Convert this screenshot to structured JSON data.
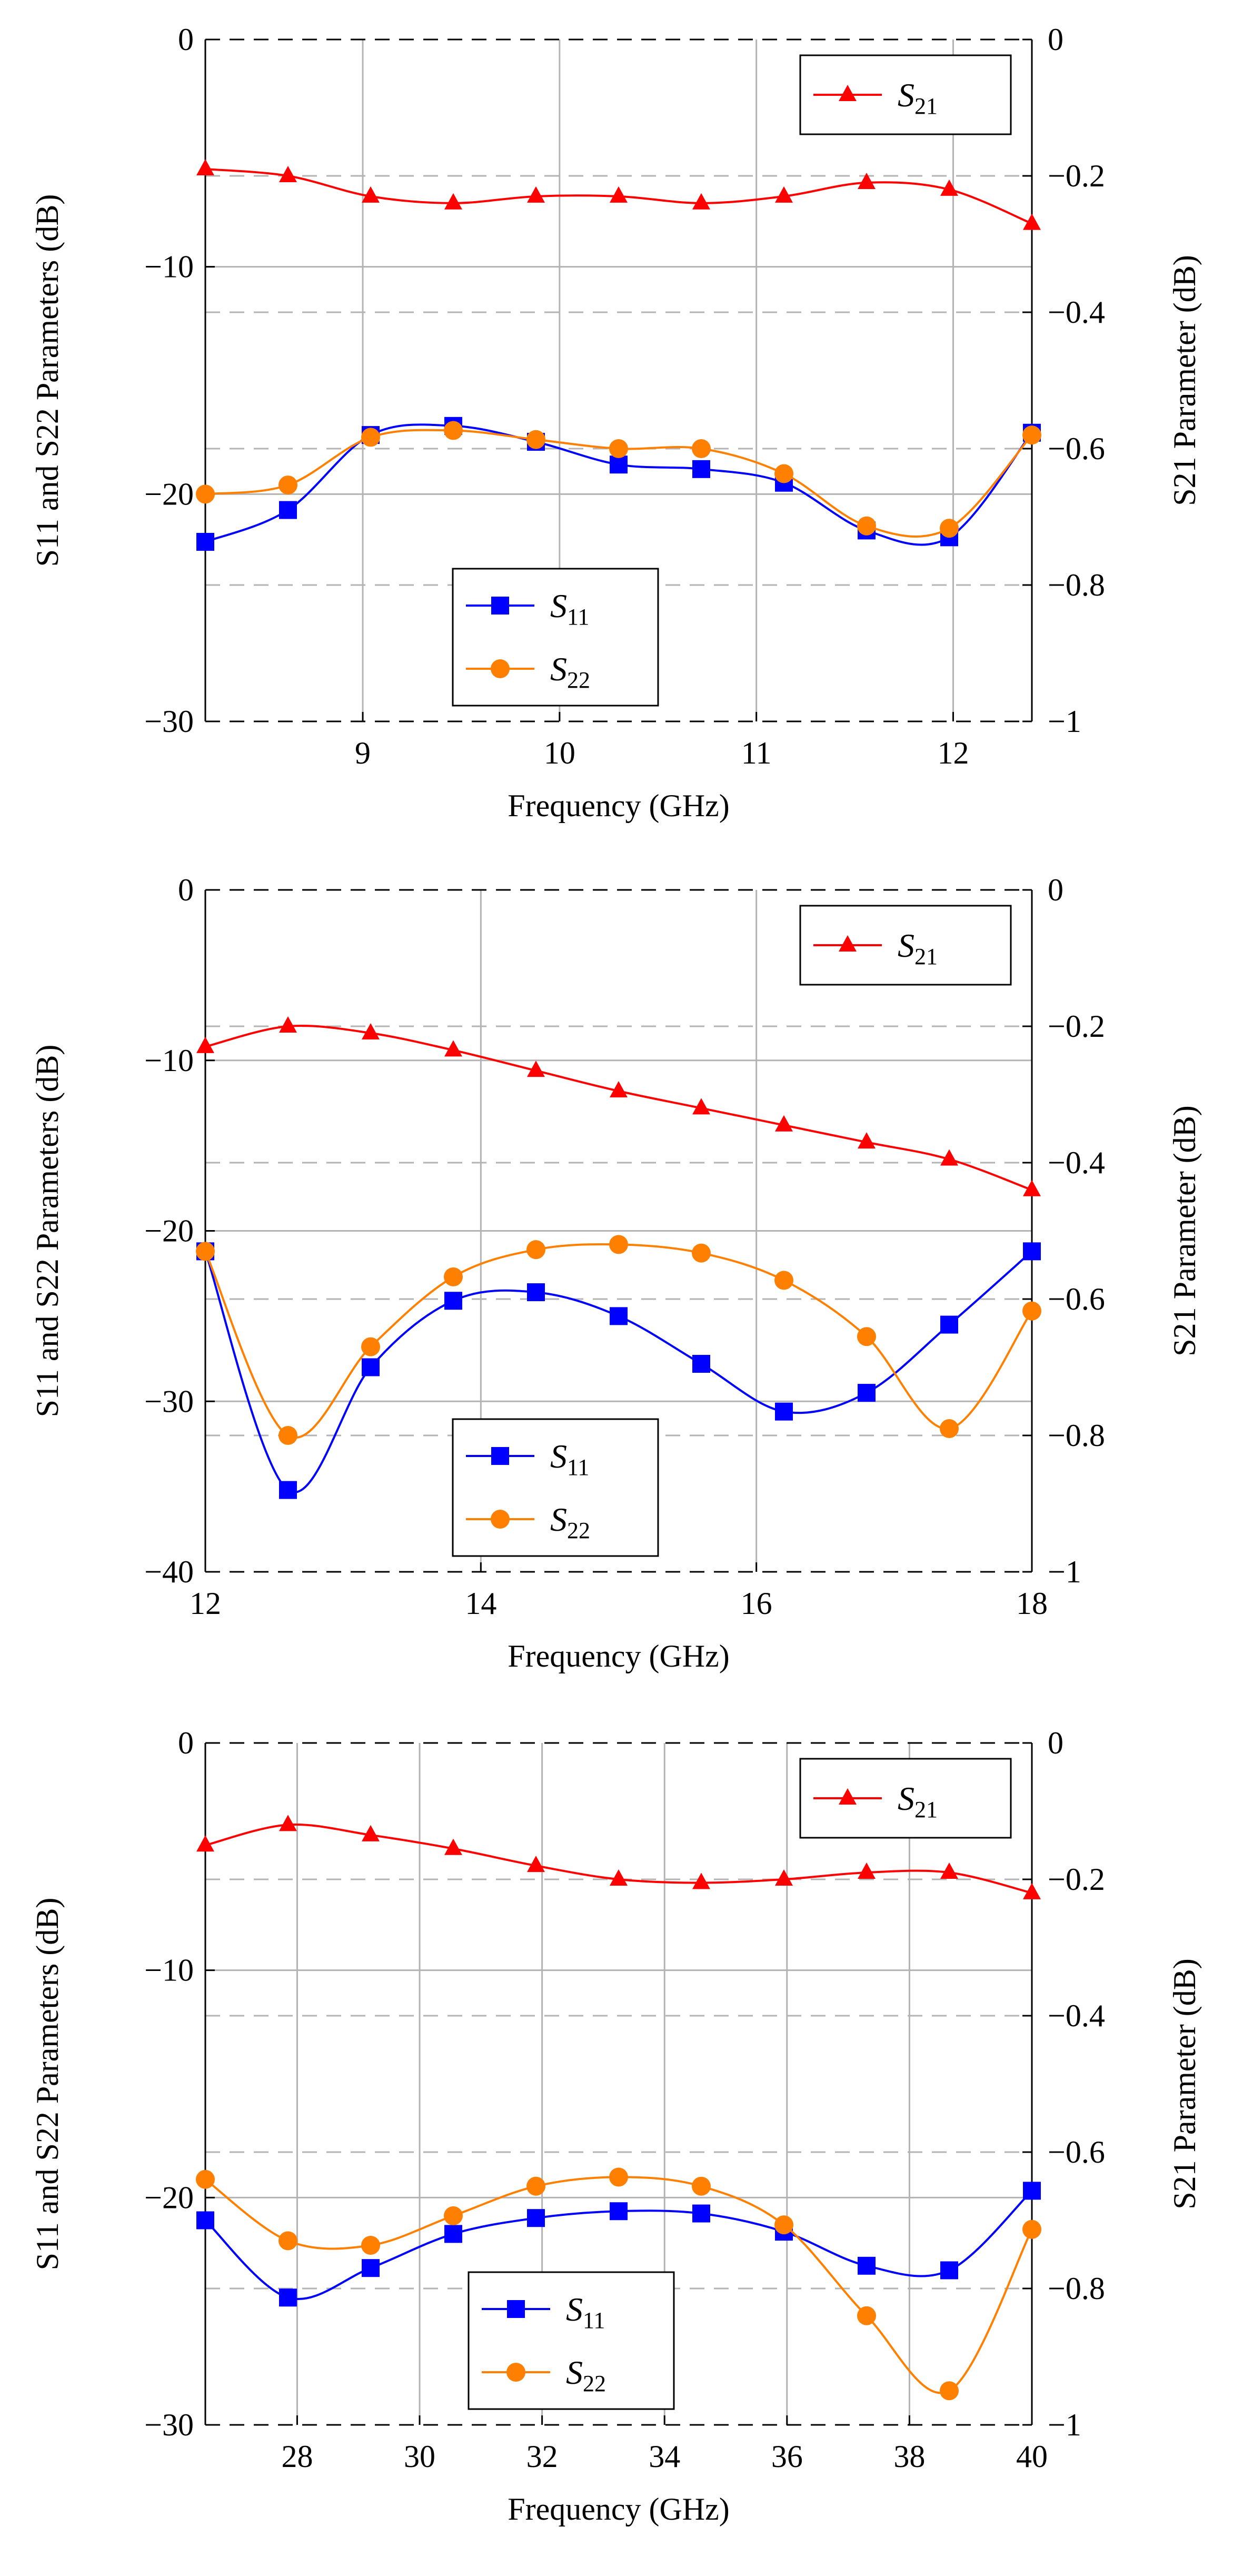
{
  "colors": {
    "s11": "#0000ff",
    "s22": "#ff8000",
    "s21": "#ff0000",
    "grid": "#b3b3b3",
    "s21_grid": "#b3b3b3"
  },
  "chart_data": [
    {
      "type": "line",
      "xlabel": "Frequency (GHz)",
      "ylabel": "S11 and S22 Parameters (dB)",
      "y2label": "S21 Parameter (dB)",
      "xlim": [
        8.2,
        12.4
      ],
      "xticks": [
        9,
        10,
        11,
        12
      ],
      "ylim": [
        -30,
        0
      ],
      "yticks": [
        -30,
        -20,
        -10,
        0
      ],
      "y2lim": [
        -1,
        0
      ],
      "y2ticks": [
        -1,
        -0.8,
        -0.6,
        -0.4,
        -0.2,
        0
      ],
      "legend_top": "top-right",
      "legend_bottom": "bottom-center",
      "x": [
        8.2,
        8.62,
        9.04,
        9.46,
        9.88,
        10.3,
        10.72,
        11.14,
        11.56,
        11.98,
        12.4
      ],
      "series": [
        {
          "key": "s11",
          "name": "S",
          "sub": "11",
          "axis": "left",
          "marker": "square",
          "values": [
            -22.1,
            -20.7,
            -17.4,
            -17.0,
            -17.7,
            -18.7,
            -18.9,
            -19.5,
            -21.6,
            -21.9,
            -17.3
          ]
        },
        {
          "key": "s22",
          "name": "S",
          "sub": "22",
          "axis": "left",
          "marker": "circle",
          "values": [
            -20.0,
            -19.6,
            -17.5,
            -17.2,
            -17.6,
            -18.0,
            -18.0,
            -19.1,
            -21.4,
            -21.5,
            -17.4
          ]
        },
        {
          "key": "s21",
          "name": "S",
          "sub": "21",
          "axis": "right",
          "marker": "triangle",
          "values": [
            -0.19,
            -0.2,
            -0.23,
            -0.24,
            -0.23,
            -0.23,
            -0.24,
            -0.23,
            -0.21,
            -0.22,
            -0.27
          ]
        }
      ]
    },
    {
      "type": "line",
      "xlabel": "Frequency (GHz)",
      "ylabel": "S11 and S22 Parameters (dB)",
      "y2label": "S21 Parameter (dB)",
      "xlim": [
        12,
        18
      ],
      "xticks": [
        12,
        14,
        16,
        18
      ],
      "ylim": [
        -40,
        0
      ],
      "yticks": [
        -40,
        -30,
        -20,
        -10,
        0
      ],
      "y2lim": [
        -1,
        0
      ],
      "y2ticks": [
        -1,
        -0.8,
        -0.6,
        -0.4,
        -0.2,
        0
      ],
      "legend_top": "top-right",
      "legend_bottom": "bottom-center",
      "x": [
        12,
        12.6,
        13.2,
        13.8,
        14.4,
        15.0,
        15.6,
        16.2,
        16.8,
        17.4,
        18.0
      ],
      "series": [
        {
          "key": "s11",
          "name": "S",
          "sub": "11",
          "axis": "left",
          "marker": "square",
          "values": [
            -21.2,
            -35.2,
            -28.0,
            -24.1,
            -23.6,
            -25.0,
            -27.8,
            -30.6,
            -29.5,
            -25.5,
            -21.2
          ]
        },
        {
          "key": "s22",
          "name": "S",
          "sub": "22",
          "axis": "left",
          "marker": "circle",
          "values": [
            -21.2,
            -32.0,
            -26.8,
            -22.7,
            -21.1,
            -20.8,
            -21.3,
            -22.9,
            -26.2,
            -31.6,
            -24.7
          ]
        },
        {
          "key": "s21",
          "name": "S",
          "sub": "21",
          "axis": "right",
          "marker": "triangle",
          "values": [
            -0.23,
            -0.2,
            -0.21,
            -0.235,
            -0.265,
            -0.295,
            -0.32,
            -0.345,
            -0.37,
            -0.395,
            -0.44
          ]
        }
      ]
    },
    {
      "type": "line",
      "xlabel": "Frequency (GHz)",
      "ylabel": "S11 and S22 Parameters (dB)",
      "y2label": "S21 Parameter (dB)",
      "xlim": [
        26.5,
        40
      ],
      "xticks": [
        28,
        30,
        32,
        34,
        36,
        38,
        40
      ],
      "ylim": [
        -30,
        0
      ],
      "yticks": [
        -30,
        -20,
        -10,
        0
      ],
      "y2lim": [
        -1,
        0
      ],
      "y2ticks": [
        -1,
        -0.8,
        -0.6,
        -0.4,
        -0.2,
        0
      ],
      "legend_top": "top-right",
      "legend_bottom": "bottom-left",
      "x": [
        26.5,
        27.85,
        29.2,
        30.55,
        31.9,
        33.25,
        34.6,
        35.95,
        37.3,
        38.65,
        40.0
      ],
      "series": [
        {
          "key": "s11",
          "name": "S",
          "sub": "11",
          "axis": "left",
          "marker": "square",
          "values": [
            -21.0,
            -24.4,
            -23.1,
            -21.6,
            -20.9,
            -20.6,
            -20.7,
            -21.5,
            -23.0,
            -23.2,
            -19.7
          ]
        },
        {
          "key": "s22",
          "name": "S",
          "sub": "22",
          "axis": "left",
          "marker": "circle",
          "values": [
            -19.2,
            -21.9,
            -22.1,
            -20.8,
            -19.5,
            -19.1,
            -19.5,
            -21.2,
            -25.2,
            -28.5,
            -21.4
          ]
        },
        {
          "key": "s21",
          "name": "S",
          "sub": "21",
          "axis": "right",
          "marker": "triangle",
          "values": [
            -0.15,
            -0.12,
            -0.135,
            -0.155,
            -0.18,
            -0.2,
            -0.205,
            -0.2,
            -0.19,
            -0.19,
            -0.22
          ]
        }
      ]
    }
  ]
}
